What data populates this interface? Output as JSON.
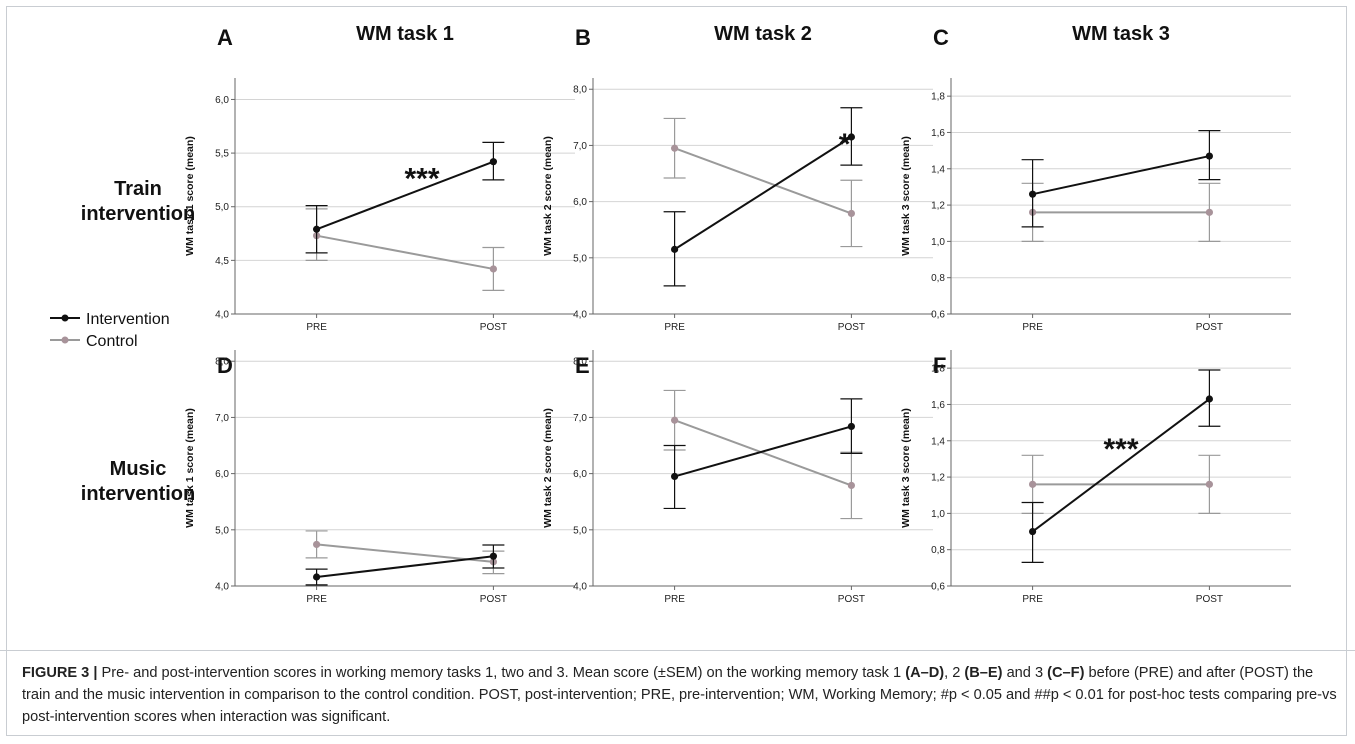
{
  "legend": {
    "intervention_label": "Intervention",
    "control_label": "Control",
    "intervention_color": "#111111",
    "control_color": "#9a9a9a",
    "control_point_color": "#a8939a"
  },
  "row_labels": [
    {
      "line1": "Train",
      "line2": "intervention"
    },
    {
      "line1": "Music",
      "line2": "intervention"
    }
  ],
  "caption": {
    "label": "FIGURE 3 |",
    "text_1": " Pre- and post-intervention scores in working memory tasks 1, two and 3. Mean score (±SEM) on the working memory task 1 ",
    "bold_1": "(A–D)",
    "text_2": ", 2 ",
    "bold_2": "(B–E)",
    "text_3": " and 3 ",
    "bold_3": "(C–F)",
    "text_4": " before (PRE) and after (POST) the train and the music intervention in comparison to the control condition. POST, post-intervention; PRE, pre-intervention; WM, Working Memory; #p < 0.05 and ##p < 0.01 for post-hoc tests comparing pre-vs post-intervention scores when interaction was significant."
  },
  "chart_data": [
    {
      "type": "line",
      "panel": "A",
      "title": "WM task 1",
      "ylabel": "WM task 1 score (mean)",
      "xlabel": "",
      "categories": [
        "PRE",
        "POST"
      ],
      "ylim": [
        4.0,
        6.2
      ],
      "yticks": [
        4.0,
        4.5,
        5.0,
        5.5,
        6.0
      ],
      "ytick_labels": [
        "4,0",
        "4,5",
        "5,0",
        "5,5",
        "6,0"
      ],
      "grid": true,
      "series": [
        {
          "name": "Intervention",
          "values": [
            4.79,
            5.42
          ],
          "err_low": [
            4.57,
            5.25
          ],
          "err_high": [
            5.01,
            5.6
          ]
        },
        {
          "name": "Control",
          "values": [
            4.73,
            4.42
          ],
          "err_low": [
            4.5,
            4.22
          ],
          "err_high": [
            4.98,
            4.62
          ]
        }
      ],
      "annotation": {
        "text": "***",
        "x": 0.55,
        "y": 5.17
      }
    },
    {
      "type": "line",
      "panel": "B",
      "title": "WM task 2",
      "ylabel": "WM task 2 score (mean)",
      "xlabel": "",
      "categories": [
        "PRE",
        "POST"
      ],
      "ylim": [
        4.0,
        8.2
      ],
      "yticks": [
        4.0,
        5.0,
        6.0,
        7.0,
        8.0
      ],
      "ytick_labels": [
        "4,0",
        "5,0",
        "6,0",
        "7,0",
        "8,0"
      ],
      "grid": true,
      "series": [
        {
          "name": "Intervention",
          "values": [
            5.15,
            7.15
          ],
          "err_low": [
            4.5,
            6.65
          ],
          "err_high": [
            5.82,
            7.67
          ]
        },
        {
          "name": "Control",
          "values": [
            6.95,
            5.79
          ],
          "err_low": [
            6.42,
            5.2
          ],
          "err_high": [
            7.48,
            6.38
          ]
        }
      ],
      "annotation": {
        "text": "*",
        "x": 0.74,
        "y": 6.85
      }
    },
    {
      "type": "line",
      "panel": "C",
      "title": "WM task 3",
      "ylabel": "WM task 3 score (mean)",
      "xlabel": "",
      "categories": [
        "PRE",
        "POST"
      ],
      "ylim": [
        0.6,
        1.9
      ],
      "yticks": [
        0.6,
        0.8,
        1.0,
        1.2,
        1.4,
        1.6,
        1.8
      ],
      "ytick_labels": [
        "0,6",
        "0,8",
        "1,0",
        "1,2",
        "1,4",
        "1,6",
        "1,8"
      ],
      "grid": true,
      "series": [
        {
          "name": "Intervention",
          "values": [
            1.26,
            1.47
          ],
          "err_low": [
            1.08,
            1.34
          ],
          "err_high": [
            1.45,
            1.61
          ]
        },
        {
          "name": "Control",
          "values": [
            1.16,
            1.16
          ],
          "err_low": [
            1.0,
            1.0
          ],
          "err_high": [
            1.32,
            1.32
          ]
        }
      ]
    },
    {
      "type": "line",
      "panel": "D",
      "title": "",
      "ylabel": "WM task 1 score (mean)",
      "xlabel": "",
      "categories": [
        "PRE",
        "POST"
      ],
      "ylim": [
        4.0,
        8.2
      ],
      "yticks": [
        4.0,
        5.0,
        6.0,
        7.0,
        8.0
      ],
      "ytick_labels": [
        "4,0",
        "5,0",
        "6,0",
        "7,0",
        "8,0"
      ],
      "grid": true,
      "series": [
        {
          "name": "Intervention",
          "values": [
            4.16,
            4.53
          ],
          "err_low": [
            4.02,
            4.32
          ],
          "err_high": [
            4.3,
            4.73
          ]
        },
        {
          "name": "Control",
          "values": [
            4.74,
            4.43
          ],
          "err_low": [
            4.5,
            4.22
          ],
          "err_high": [
            4.98,
            4.62
          ]
        }
      ]
    },
    {
      "type": "line",
      "panel": "E",
      "title": "",
      "ylabel": "WM task 2 score (mean)",
      "xlabel": "",
      "categories": [
        "PRE",
        "POST"
      ],
      "ylim": [
        4.0,
        8.2
      ],
      "yticks": [
        4.0,
        5.0,
        6.0,
        7.0,
        8.0
      ],
      "ytick_labels": [
        "4,0",
        "5,0",
        "6,0",
        "7,0",
        "8,0"
      ],
      "grid": true,
      "series": [
        {
          "name": "Intervention",
          "values": [
            5.95,
            6.84
          ],
          "err_low": [
            5.38,
            6.36
          ],
          "err_high": [
            6.5,
            7.33
          ]
        },
        {
          "name": "Control",
          "values": [
            6.95,
            5.79
          ],
          "err_low": [
            6.42,
            5.2
          ],
          "err_high": [
            7.48,
            6.38
          ]
        }
      ]
    },
    {
      "type": "line",
      "panel": "F",
      "title": "",
      "ylabel": "WM task 3 score (mean)",
      "xlabel": "",
      "categories": [
        "PRE",
        "POST"
      ],
      "ylim": [
        0.6,
        1.9
      ],
      "yticks": [
        0.6,
        0.8,
        1.0,
        1.2,
        1.4,
        1.6,
        1.8
      ],
      "ytick_labels": [
        "0,6",
        "0,8",
        "1,0",
        "1,2",
        "1,4",
        "1,6",
        "1,8"
      ],
      "grid": true,
      "series": [
        {
          "name": "Intervention",
          "values": [
            0.9,
            1.63
          ],
          "err_low": [
            0.73,
            1.48
          ],
          "err_high": [
            1.06,
            1.79
          ]
        },
        {
          "name": "Control",
          "values": [
            1.16,
            1.16
          ],
          "err_low": [
            1.0,
            1.0
          ],
          "err_high": [
            1.32,
            1.32
          ]
        }
      ],
      "annotation": {
        "text": "***",
        "x": 0.5,
        "y": 1.3
      }
    }
  ]
}
